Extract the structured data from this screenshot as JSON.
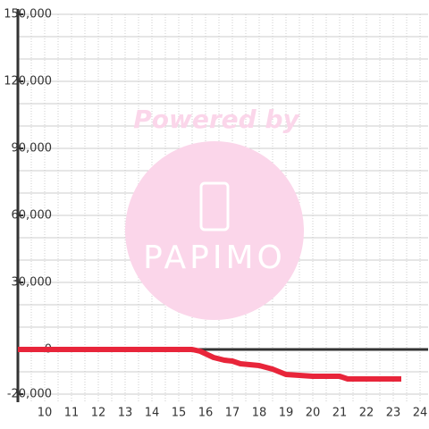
{
  "chart_data": {
    "type": "line",
    "watermark": {
      "title": "Powered by",
      "logo": "PAPIMO"
    },
    "x": [
      9,
      15.5,
      15.8,
      16.3,
      16.7,
      17,
      17.3,
      18,
      18.5,
      19,
      19.5,
      20,
      21,
      21.3,
      22,
      23.3
    ],
    "series": [
      {
        "color": "#e8253a",
        "values": [
          0,
          0,
          -800,
          -3600,
          -4800,
          -5200,
          -6400,
          -7200,
          -8800,
          -11200,
          -11600,
          -12000,
          -12000,
          -13200,
          -13200,
          -13200
        ]
      }
    ],
    "xlim": [
      9,
      24.3
    ],
    "xticks": [
      10,
      11,
      12,
      13,
      14,
      15,
      16,
      17,
      18,
      19,
      20,
      21,
      22,
      23,
      24
    ],
    "x_minor_ticks": [
      9.5,
      10.5,
      11.5,
      12.5,
      13.5,
      14.5,
      15.5,
      16.5,
      17.5,
      18.5,
      19.5,
      20.5,
      21.5,
      22.5,
      23.5
    ],
    "ylim": [
      -20000,
      150000
    ],
    "yticks": [
      {
        "value": -20000,
        "label": "-20,000"
      },
      0,
      {
        "value": 30000,
        "label": "30,000"
      },
      {
        "value": 60000,
        "label": "60,000"
      },
      {
        "value": 90000,
        "label": "90,000"
      },
      {
        "value": 120000,
        "label": "120,000"
      },
      {
        "value": 150000,
        "label": "150,000"
      }
    ],
    "y_minor_ticks": [
      -10000,
      10000,
      20000,
      40000,
      50000,
      70000,
      80000,
      100000,
      110000,
      130000,
      140000
    ],
    "grid": true
  }
}
